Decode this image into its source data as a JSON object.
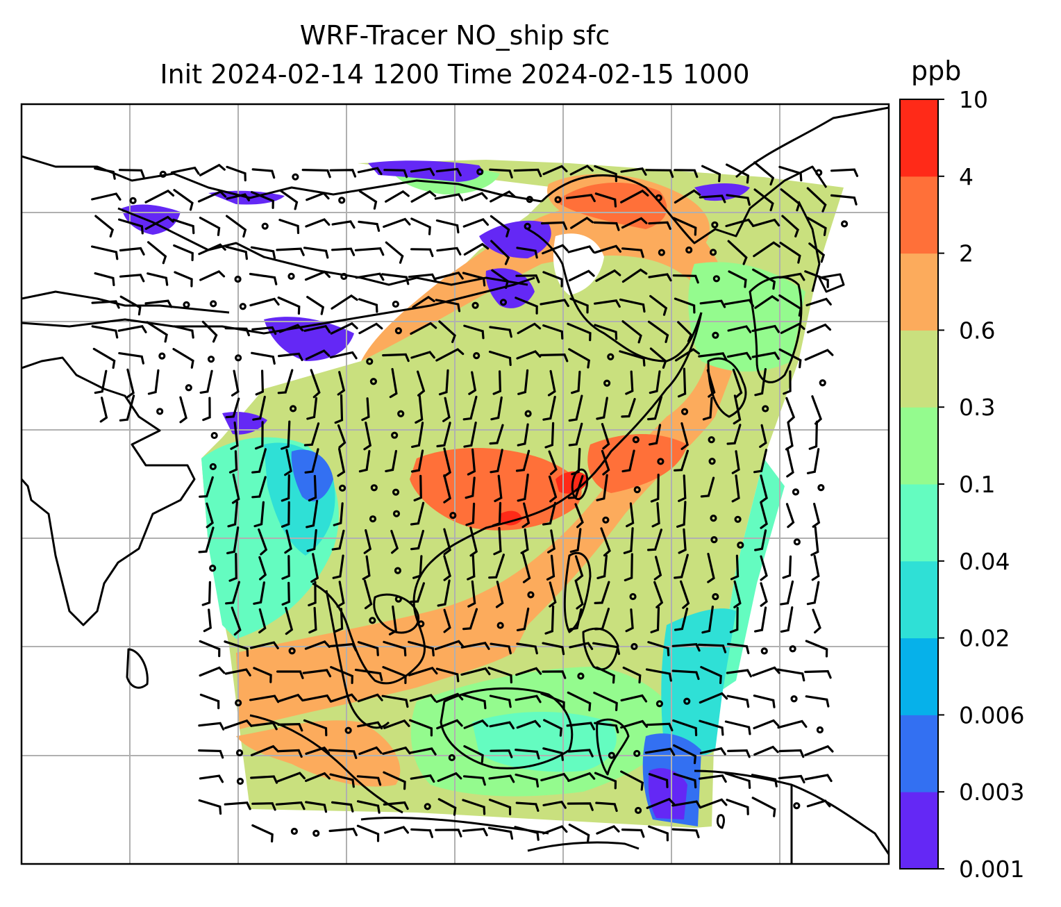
{
  "title_line1": "WRF-Tracer NO_ship sfc",
  "title_line2": "Init 2024-02-14 1200 Time 2024-02-15 1000",
  "colorbar": {
    "unit": "ppb",
    "levels": [
      "0.001",
      "0.003",
      "0.006",
      "0.02",
      "0.04",
      "0.1",
      "0.3",
      "0.6",
      "2",
      "4",
      "10"
    ],
    "colors": [
      "#6428f5",
      "#3370f2",
      "#06b1ea",
      "#2fe0d6",
      "#64fcc0",
      "#94fb8e",
      "#c9e07e",
      "#fcab5c",
      "#ff7039",
      "#ff2a18"
    ]
  },
  "map": {
    "gridlines": true,
    "coastline_color": "#000000",
    "wind_barbs": true
  }
}
